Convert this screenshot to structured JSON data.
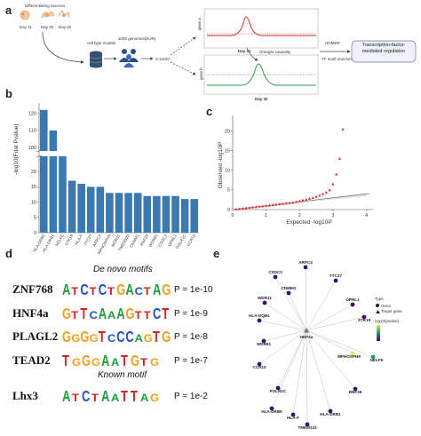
{
  "panels": {
    "a": "a",
    "b": "b",
    "c": "c",
    "d": "d",
    "e": "e"
  },
  "panel_a": {
    "neurons_label": "Differentiating neurons",
    "days": [
      "Day 11",
      "Day 30",
      "Day 52"
    ],
    "cell_type_models": "cell type models",
    "genomes_label": "1000 genomes(EUR)",
    "ldsc": "S-LDSC",
    "gene_a": "gene a",
    "gene_b": "gene b",
    "day11": "Day 11",
    "day30": "Day 30",
    "granger": "Granger causality",
    "homer": "HOMER",
    "tf_motif": "TF motif enrichment",
    "result_box": "Transcription-factor-mediated regulation"
  },
  "chart_data": [
    {
      "type": "bar",
      "panel": "b",
      "ylabel": "-log10(Fdat Pvalue)",
      "categories": [
        "HLA-DRB5",
        "HLA-DRB1",
        "NELFE",
        "STK19",
        "HLA-F",
        "TTC27",
        "ARPC4",
        "MPHOSPH9",
        "WDR11",
        "TMEM133",
        "CNMM1",
        "RNF39",
        "WDR91",
        "CSDC2",
        "OPRL1",
        "POLR1C",
        "CCR10"
      ],
      "values": [
        122,
        110,
        25,
        17,
        16,
        15,
        15,
        13,
        13,
        13,
        13,
        12,
        12,
        12,
        12,
        11,
        11
      ],
      "yticks_top": [
        100,
        110,
        120
      ],
      "yticks_bottom": [
        0,
        5,
        10,
        15,
        20
      ],
      "broken_axis": true
    },
    {
      "type": "scatter",
      "panel": "c",
      "xlabel": "Expected -log10P",
      "ylabel": "Observed -log10P",
      "xticks": [
        0,
        1,
        2,
        3,
        4
      ],
      "yticks": [
        0,
        5,
        10,
        15,
        20
      ],
      "xlim": [
        0,
        4.2
      ],
      "ylim": [
        0,
        24
      ],
      "points_x": [
        0.1,
        0.2,
        0.3,
        0.4,
        0.5,
        0.6,
        0.7,
        0.8,
        0.9,
        1.0,
        1.1,
        1.2,
        1.3,
        1.4,
        1.5,
        1.6,
        1.7,
        1.8,
        1.9,
        2.0,
        2.1,
        2.2,
        2.3,
        2.4,
        2.5,
        2.6,
        2.7,
        2.8,
        2.9,
        3.0,
        3.1,
        3.2,
        3.3
      ],
      "points_y": [
        0.1,
        0.2,
        0.3,
        0.4,
        0.5,
        0.6,
        0.7,
        0.8,
        0.9,
        1.0,
        1.1,
        1.2,
        1.3,
        1.4,
        1.5,
        1.6,
        1.7,
        1.8,
        2.0,
        2.2,
        2.4,
        2.6,
        2.8,
        3.0,
        3.3,
        3.6,
        4.0,
        4.4,
        5.0,
        6.5,
        9.0,
        13.0,
        20.5
      ]
    }
  ],
  "panel_d": {
    "de_novo_title": "De novo motifs",
    "known_title": "Known motif",
    "motifs": [
      {
        "name": "ZNF768",
        "sequence": "ATCTCTGACTAG",
        "p": "P = 1e-10"
      },
      {
        "name": "HNF4a",
        "sequence": "GTTCAAAGTTCT",
        "p": "P = 1e-9"
      },
      {
        "name": "PLAGL2",
        "sequence": "GGGGTCCCAGTG",
        "p": "P = 1e-8"
      },
      {
        "name": "TEAD2",
        "sequence": "TGGGAATGTG",
        "p": "P = 1e-7"
      },
      {
        "name": "Lhx3",
        "sequence": "ATCTAATTAG",
        "p": "P = 1e-2"
      }
    ]
  },
  "panel_e": {
    "hub": "HNF4a",
    "nodes": [
      {
        "label": "ARPC4",
        "color": "#3b0f70"
      },
      {
        "label": "CSDC2",
        "color": "#3b0f70"
      },
      {
        "label": "TTC27",
        "color": "#3b0f70"
      },
      {
        "label": "CNMM1",
        "color": "#3b0f70"
      },
      {
        "label": "WDR11",
        "color": "#3b0f70"
      },
      {
        "label": "OPRL1",
        "color": "#3b0f70"
      },
      {
        "label": "STK19",
        "color": "#3b0f70"
      },
      {
        "label": "HLA-DQB1",
        "color": "#3b0f70"
      },
      {
        "label": "WDR91",
        "color": "#3b0f70"
      },
      {
        "label": "MPHOSPH9",
        "color": "#f0e442"
      },
      {
        "label": "NELFE",
        "color": "#21918c"
      },
      {
        "label": "CCR10",
        "color": "#3b0f70"
      },
      {
        "label": "POLR1C",
        "color": "#3b0f70"
      },
      {
        "label": "RNF39",
        "color": "#3b0f70"
      },
      {
        "label": "HLA-DRB5",
        "color": "#3b0f70"
      },
      {
        "label": "HLA-F",
        "color": "#3b0f70"
      },
      {
        "label": "HLA-DRB1",
        "color": "#3b0f70"
      },
      {
        "label": "TMEM133",
        "color": "#3b0f70"
      }
    ],
    "legend_type": "Type",
    "legend_items": [
      "Gene",
      "Target gene"
    ],
    "legend_scale": "log10(pvalue)"
  }
}
